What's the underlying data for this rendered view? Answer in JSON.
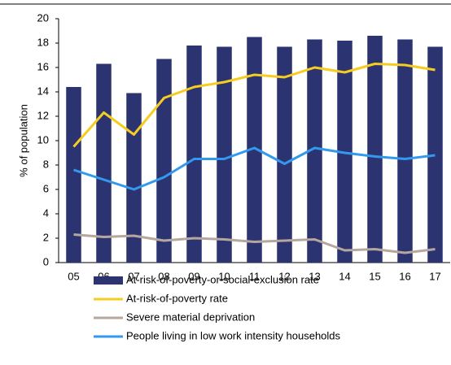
{
  "chart_data": {
    "type": "bar",
    "y_label": "% of population",
    "categories": [
      "05",
      "06",
      "07",
      "08",
      "09",
      "10",
      "11",
      "12",
      "13",
      "14",
      "15",
      "16",
      "17"
    ],
    "series": [
      {
        "name": "At-risk-of-poverty-or-social-exclusion rate",
        "type": "bar",
        "color": "#2b3470",
        "values": [
          14.4,
          16.3,
          13.9,
          16.7,
          17.8,
          17.7,
          18.5,
          17.7,
          18.3,
          18.2,
          18.6,
          18.3,
          17.7
        ]
      },
      {
        "name": "At-risk-of-poverty rate",
        "type": "line",
        "color": "#f5cc1f",
        "values": [
          9.5,
          12.3,
          10.5,
          13.5,
          14.4,
          14.8,
          15.4,
          15.2,
          16.0,
          15.6,
          16.3,
          16.2,
          15.8
        ]
      },
      {
        "name": "Severe material deprivation",
        "type": "line",
        "color": "#b5a79e",
        "values": [
          2.3,
          2.1,
          2.2,
          1.8,
          2.0,
          1.9,
          1.7,
          1.8,
          1.9,
          1.0,
          1.1,
          0.8,
          1.1
        ]
      },
      {
        "name": "People living in low work intensity households",
        "type": "line",
        "color": "#3399ee",
        "values": [
          7.6,
          6.8,
          6.0,
          7.0,
          8.5,
          8.5,
          9.4,
          8.1,
          9.4,
          9.0,
          8.7,
          8.5,
          8.8
        ]
      }
    ],
    "ylim": [
      0,
      20
    ],
    "yticks": [
      0,
      2,
      4,
      6,
      8,
      10,
      12,
      14,
      16,
      18,
      20
    ]
  }
}
